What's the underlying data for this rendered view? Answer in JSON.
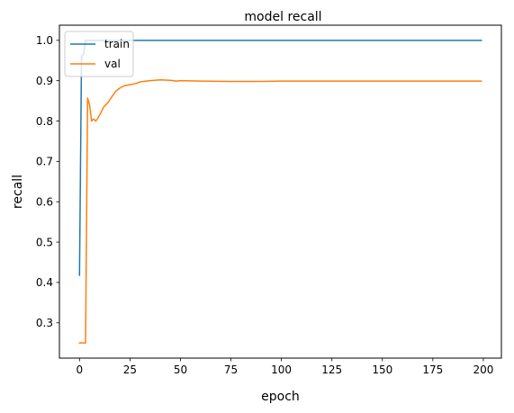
{
  "chart_data": {
    "type": "line",
    "title": "model recall",
    "xlabel": "epoch",
    "ylabel": "recall",
    "xlim": [
      -9.95,
      208.95
    ],
    "ylim": [
      0.2125,
      1.0375
    ],
    "xticks": [
      0,
      25,
      50,
      75,
      100,
      125,
      150,
      175,
      200
    ],
    "yticks": [
      0.3,
      0.4,
      0.5,
      0.6,
      0.7,
      0.8,
      0.9,
      1.0
    ],
    "xtick_labels": [
      "0",
      "25",
      "50",
      "75",
      "100",
      "125",
      "150",
      "175",
      "200"
    ],
    "ytick_labels": [
      "0.3",
      "0.4",
      "0.5",
      "0.6",
      "0.7",
      "0.8",
      "0.9",
      "1.0"
    ],
    "grid": false,
    "legend_position": "upper left",
    "series": [
      {
        "name": "train",
        "color": "#1f77b4",
        "points": [
          [
            0,
            0.418
          ],
          [
            1,
            0.96
          ],
          [
            2,
            0.965
          ],
          [
            3,
            1.0
          ],
          [
            50,
            1.0
          ],
          [
            100,
            1.0
          ],
          [
            150,
            1.0
          ],
          [
            199,
            1.0
          ]
        ]
      },
      {
        "name": "val",
        "color": "#ff7f0e",
        "points": [
          [
            0,
            0.25
          ],
          [
            1,
            0.25
          ],
          [
            2,
            0.25
          ],
          [
            3,
            0.25
          ],
          [
            4,
            0.857
          ],
          [
            5,
            0.84
          ],
          [
            6,
            0.8
          ],
          [
            7,
            0.805
          ],
          [
            8,
            0.8
          ],
          [
            9,
            0.806
          ],
          [
            10,
            0.815
          ],
          [
            11,
            0.825
          ],
          [
            12,
            0.835
          ],
          [
            14,
            0.845
          ],
          [
            16,
            0.86
          ],
          [
            18,
            0.874
          ],
          [
            20,
            0.882
          ],
          [
            22,
            0.887
          ],
          [
            25,
            0.89
          ],
          [
            28,
            0.893
          ],
          [
            30,
            0.897
          ],
          [
            35,
            0.9
          ],
          [
            40,
            0.902
          ],
          [
            45,
            0.901
          ],
          [
            48,
            0.899
          ],
          [
            50,
            0.9
          ],
          [
            60,
            0.899
          ],
          [
            75,
            0.898
          ],
          [
            90,
            0.898
          ],
          [
            100,
            0.899
          ],
          [
            125,
            0.899
          ],
          [
            150,
            0.899
          ],
          [
            175,
            0.899
          ],
          [
            199,
            0.899
          ]
        ]
      }
    ]
  }
}
